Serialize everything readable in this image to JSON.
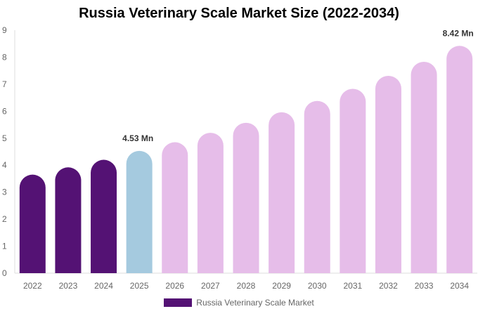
{
  "chart_data": {
    "type": "bar",
    "title": "Russia Veterinary Scale Market Size (2022-2034)",
    "xlabel": "",
    "ylabel": "",
    "categories": [
      "2022",
      "2023",
      "2024",
      "2025",
      "2026",
      "2027",
      "2028",
      "2029",
      "2030",
      "2031",
      "2032",
      "2033",
      "2034"
    ],
    "series": [
      {
        "name": "Russia Veterinary Scale Market",
        "values": [
          3.65,
          3.92,
          4.2,
          4.53,
          4.85,
          5.2,
          5.57,
          5.96,
          6.38,
          6.83,
          7.31,
          7.83,
          8.42
        ]
      }
    ],
    "ylim": [
      0,
      9
    ],
    "yticks": [
      "0",
      "1",
      "2",
      "3",
      "4",
      "5",
      "6",
      "7",
      "8",
      "9"
    ],
    "data_labels": [
      {
        "category": "2025",
        "text": "4.53 Mn"
      },
      {
        "category": "2034",
        "text": "8.42 Mn"
      }
    ],
    "colors": {
      "historical": "#541274",
      "current": "#a5cadf",
      "forecast": "#e6bde9",
      "legend": "#541274",
      "axis_text": "#666666",
      "label_text": "#333333",
      "axis_line": "#dddddd"
    },
    "grid": false,
    "legend_position": "bottom"
  }
}
